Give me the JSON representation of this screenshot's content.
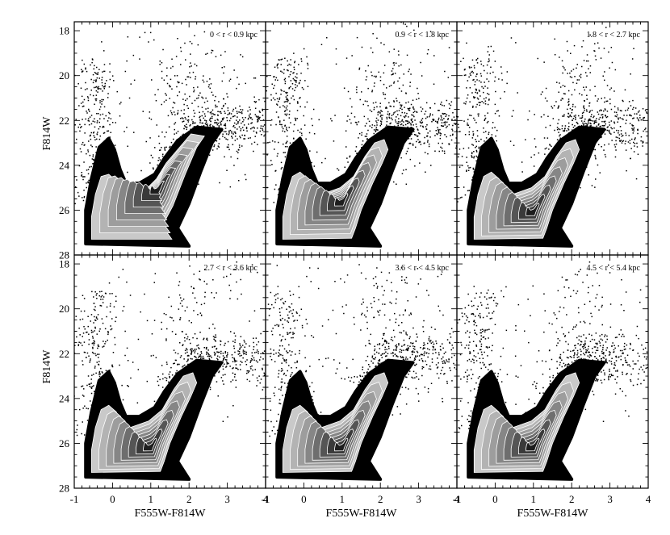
{
  "chart_data": {
    "type": "scatter",
    "layout": "2x3 panel grid, shared axes, density contours with scattered points",
    "xlabel": "F555W-F814W",
    "ylabel": "F814W",
    "xlim": [
      -1,
      4
    ],
    "ylim": [
      28,
      17.6
    ],
    "y_inverted": true,
    "x_ticks": [
      "-1",
      "0",
      "1",
      "2",
      "3",
      "4"
    ],
    "y_ticks": [
      "18",
      "20",
      "22",
      "24",
      "26",
      "28"
    ],
    "contour_grays": [
      "#1e1e1e",
      "#3a3a3a",
      "#555555",
      "#6e6e6e",
      "#868686",
      "#9d9d9d",
      "#b3b3b3",
      "#c9c9c9"
    ],
    "panels": [
      {
        "label": "0 < r < 0.9 kpc",
        "peak": [
          1.2,
          25.0
        ]
      },
      {
        "label": "0.9 < r < 1.8 kpc",
        "peak": [
          1.0,
          25.6
        ]
      },
      {
        "label": "1.8 < r < 2.7 kpc",
        "peak": [
          1.0,
          26.1
        ]
      },
      {
        "label": "2.7 < r < 3.6 kpc",
        "peak": [
          1.0,
          26.2
        ]
      },
      {
        "label": "3.6 < r < 4.5 kpc",
        "peak": [
          1.0,
          26.2
        ]
      },
      {
        "label": "4.5 < r < 5.4 kpc",
        "peak": [
          1.0,
          26.2
        ]
      }
    ]
  }
}
